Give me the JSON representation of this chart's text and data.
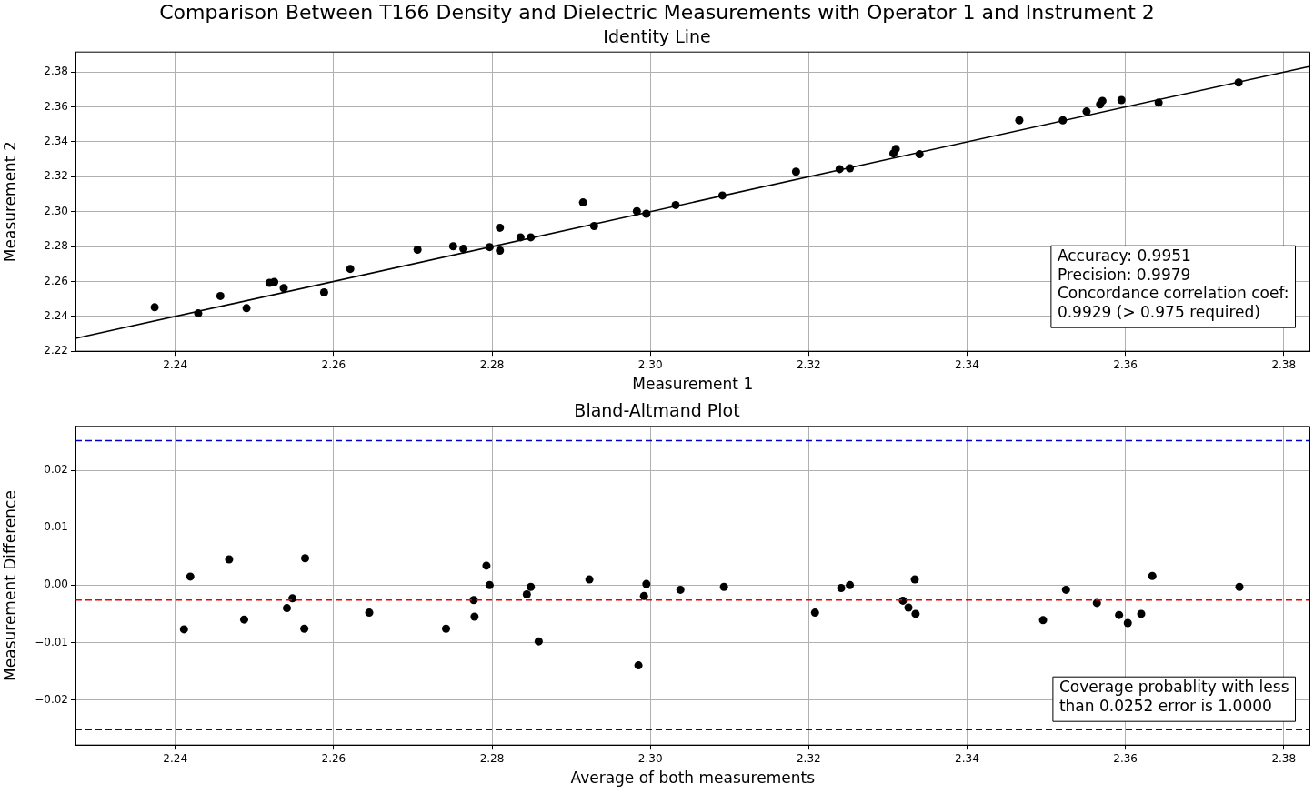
{
  "chart_data": [
    {
      "type": "scatter",
      "title": "Comparison Between T166 Density and Dielectric Measurements with Operator 1 and Instrument 2",
      "subtitle": "Identity Line",
      "xlabel": "Measurement 1",
      "ylabel": "Measurement 2",
      "series": [
        {
          "color": "#000000",
          "x": [
            2.2374,
            2.2429,
            2.2457,
            2.249,
            2.2519,
            2.2525,
            2.2537,
            2.2588,
            2.2621,
            2.2706,
            2.2751,
            2.2764,
            2.2797,
            2.281,
            2.281,
            2.2836,
            2.2849,
            2.2915,
            2.2929,
            2.2983,
            2.2995,
            2.3032,
            2.3091,
            2.3184,
            2.3239,
            2.3252,
            2.3307,
            2.331,
            2.334,
            2.3466,
            2.3521,
            2.3551,
            2.3568,
            2.3571,
            2.3595,
            2.3642,
            2.3743
          ],
          "values": [
            2.2452,
            2.2417,
            2.2517,
            2.2447,
            2.2592,
            2.2597,
            2.2562,
            2.2537,
            2.2672,
            2.2782,
            2.2802,
            2.2787,
            2.2797,
            2.2908,
            2.2777,
            2.2853,
            2.2853,
            2.3053,
            2.2918,
            2.3003,
            2.2988,
            2.3038,
            2.3093,
            2.3229,
            2.3244,
            2.3249,
            2.3334,
            2.3359,
            2.3329,
            2.3524,
            2.3524,
            2.3574,
            2.3615,
            2.3635,
            2.364,
            2.3625,
            2.374
          ]
        },
        {
          "type": "line",
          "marker": "none",
          "color": "#000000",
          "x": [
            2.2274,
            2.3833
          ],
          "values": [
            2.2274,
            2.3833
          ]
        }
      ],
      "xlim": [
        2.2274,
        2.3833
      ],
      "ylim": [
        2.22,
        2.3915
      ],
      "xticks": [
        2.24,
        2.26,
        2.28,
        {
          "value": 2.3,
          "label": "2.30"
        },
        2.32,
        2.34,
        2.36,
        2.38
      ],
      "yticks": [
        2.22,
        2.24,
        2.26,
        2.28,
        {
          "value": 2.3,
          "label": "2.30"
        },
        2.32,
        2.34,
        2.36,
        2.38
      ],
      "grid": true,
      "legend": false,
      "marker": "circle",
      "annotations": [
        "Accuracy: 0.9951\nPrecision: 0.9979\nConcordance correlation coef:\n0.9929 (> 0.975 required)"
      ]
    },
    {
      "type": "scatter",
      "title": "Bland-Altmand Plot",
      "xlabel": "Average of both measurements",
      "ylabel": "Measurement Difference",
      "series": [
        {
          "color": "#000000",
          "x": [
            2.2411,
            2.2419,
            2.2468,
            2.2487,
            2.2541,
            2.2548,
            2.2563,
            2.2564,
            2.2645,
            2.2742,
            2.2777,
            2.2778,
            2.2793,
            2.2797,
            2.2844,
            2.2849,
            2.2859,
            2.2923,
            2.2985,
            2.2992,
            2.2995,
            2.3038,
            2.3093,
            2.3208,
            2.3241,
            2.3252,
            2.3319,
            2.3326,
            2.3334,
            2.3335,
            2.3496,
            2.3525,
            2.3564,
            2.3592,
            2.3603,
            2.362,
            2.3634,
            2.3744
          ],
          "values": [
            -0.0077,
            0.0015,
            0.0045,
            -0.006,
            -0.004,
            -0.0023,
            -0.0076,
            0.0047,
            -0.0048,
            -0.0076,
            -0.0026,
            -0.0055,
            0.0034,
            0.0,
            -0.0016,
            -0.0003,
            -0.0098,
            0.001,
            -0.014,
            -0.0019,
            0.0002,
            -0.0008,
            -0.0003,
            -0.0048,
            -0.0005,
            0.0,
            -0.0027,
            -0.0039,
            0.001,
            -0.005,
            -0.0061,
            -0.0008,
            -0.0031,
            -0.0052,
            -0.0066,
            -0.005,
            0.0016,
            -0.0003
          ]
        }
      ],
      "xlim": [
        2.2274,
        2.3833
      ],
      "ylim": [
        -0.0279,
        0.0277
      ],
      "xticks": [
        2.24,
        2.26,
        2.28,
        {
          "value": 2.3,
          "label": "2.30"
        },
        2.32,
        2.34,
        2.36,
        2.38
      ],
      "yticks": [
        {
          "value": -0.02,
          "label": "−0.02"
        },
        {
          "value": -0.01,
          "label": "−0.01"
        },
        {
          "value": 0,
          "label": "0.00"
        },
        0.01,
        0.02
      ],
      "grid": true,
      "legend": false,
      "marker": "circle",
      "ref_lines": [
        {
          "axis": "y",
          "value": 0.0252,
          "color": "#0000cc",
          "line_style": "dashed"
        },
        {
          "axis": "y",
          "value": -0.0252,
          "color": "#0000cc",
          "line_style": "dashed"
        },
        {
          "axis": "y",
          "value": -0.0026,
          "color": "#ee0000",
          "line_style": "dashed"
        }
      ],
      "annotations": [
        "Coverage probablity with less\nthan 0.0252 error is 1.0000"
      ]
    }
  ]
}
